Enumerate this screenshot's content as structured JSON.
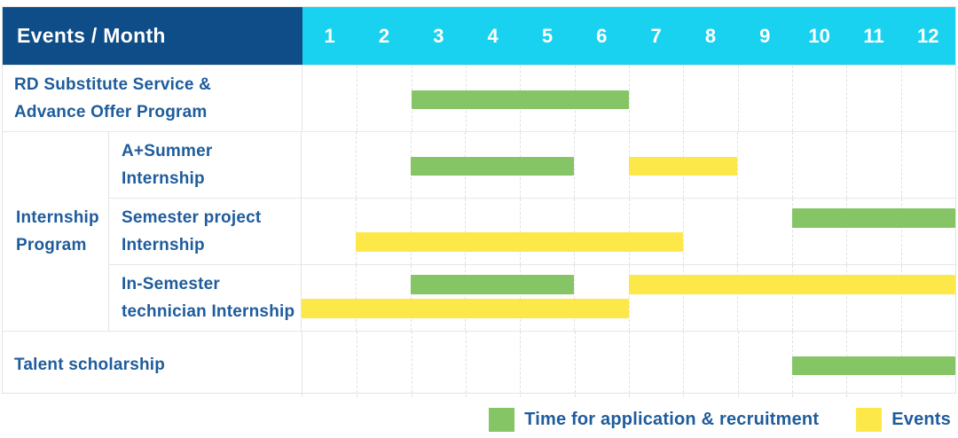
{
  "table": {
    "title": "Events / Month",
    "months": [
      "1",
      "2",
      "3",
      "4",
      "5",
      "6",
      "7",
      "8",
      "9",
      "10",
      "11",
      "12"
    ]
  },
  "group": {
    "label_lines": [
      "Internship",
      "Program"
    ]
  },
  "rows": [
    {
      "label_lines": [
        "RD Substitute Service &",
        "Advance Offer Program"
      ],
      "bars": [
        {
          "kind": "application",
          "start": 3,
          "end": 6,
          "line": "single"
        }
      ]
    },
    {
      "label_lines": [
        "A+Summer",
        "Internship"
      ],
      "bars": [
        {
          "kind": "application",
          "start": 3,
          "end": 5,
          "line": "single"
        },
        {
          "kind": "event",
          "start": 7,
          "end": 8,
          "line": "single"
        }
      ]
    },
    {
      "label_lines": [
        "Semester project",
        "Internship"
      ],
      "bars": [
        {
          "kind": "application",
          "start": 10,
          "end": 12,
          "line": "top"
        },
        {
          "kind": "event",
          "start": 2,
          "end": 7,
          "line": "bottom"
        }
      ]
    },
    {
      "label_lines": [
        "In-Semester",
        "technician Internship"
      ],
      "bars": [
        {
          "kind": "application",
          "start": 3,
          "end": 5,
          "line": "top"
        },
        {
          "kind": "event",
          "start": 7,
          "end": 12,
          "line": "top"
        },
        {
          "kind": "event",
          "start": 1,
          "end": 6,
          "line": "bottom"
        }
      ]
    },
    {
      "label_lines": [
        "Talent scholarship"
      ],
      "bars": [
        {
          "kind": "application",
          "start": 10,
          "end": 12,
          "line": "single"
        }
      ]
    }
  ],
  "legend": {
    "items": [
      {
        "kind": "application",
        "label": "Time for application & recruitment"
      },
      {
        "kind": "event",
        "label": "Events"
      }
    ]
  },
  "colors": {
    "header_bg": "#0e4d87",
    "months_bg": "#19d2ef",
    "application": "#85c565",
    "event": "#fde84a",
    "label_text": "#1e5c9c"
  },
  "chart_data": {
    "type": "table",
    "subtype": "gantt",
    "title": "Events / Month",
    "x_axis": {
      "label": "Month",
      "ticks": [
        1,
        2,
        3,
        4,
        5,
        6,
        7,
        8,
        9,
        10,
        11,
        12
      ]
    },
    "legend_entries": [
      "Time for application & recruitment",
      "Events"
    ],
    "legend_position": "bottom-right",
    "grid": true,
    "rows": [
      {
        "group": "",
        "event": "RD Substitute Service & Advance Offer Program",
        "application_recruitment_months": [
          [
            3,
            6
          ]
        ],
        "event_months": []
      },
      {
        "group": "Internship Program",
        "event": "A+Summer Internship",
        "application_recruitment_months": [
          [
            3,
            5
          ]
        ],
        "event_months": [
          [
            7,
            8
          ]
        ]
      },
      {
        "group": "Internship Program",
        "event": "Semester project Internship",
        "application_recruitment_months": [
          [
            10,
            12
          ]
        ],
        "event_months": [
          [
            2,
            7
          ]
        ]
      },
      {
        "group": "Internship Program",
        "event": "In-Semester technician Internship",
        "application_recruitment_months": [
          [
            3,
            5
          ]
        ],
        "event_months": [
          [
            1,
            6
          ],
          [
            7,
            12
          ]
        ]
      },
      {
        "group": "",
        "event": "Talent scholarship",
        "application_recruitment_months": [
          [
            10,
            12
          ]
        ],
        "event_months": []
      }
    ]
  }
}
